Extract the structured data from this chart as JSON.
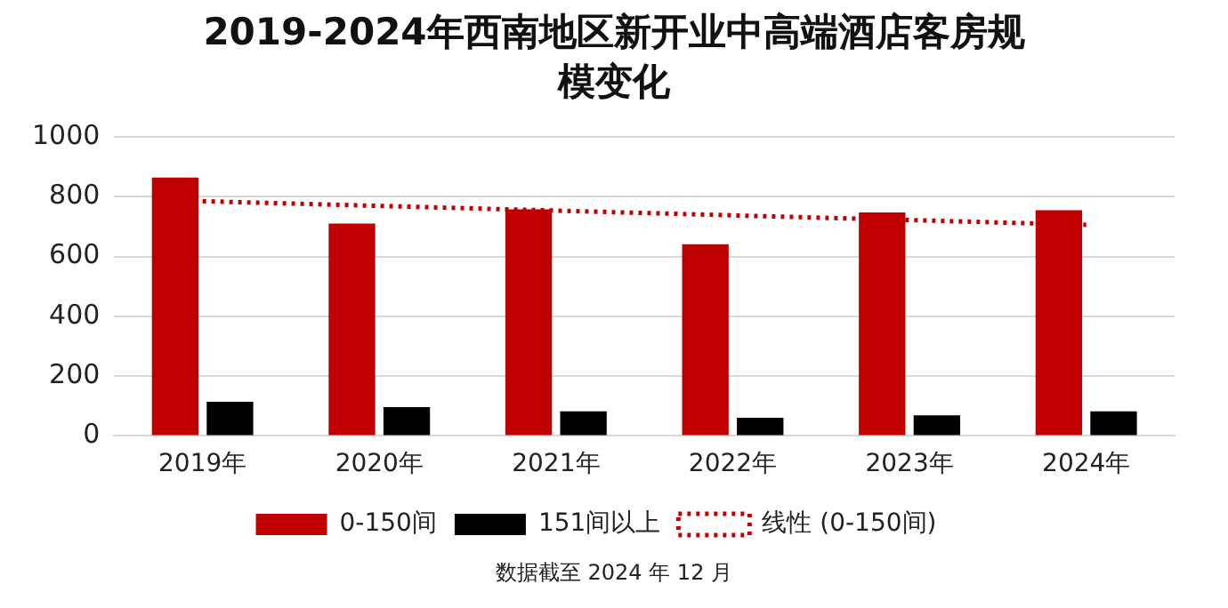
{
  "chart_data": {
    "type": "bar",
    "title": "2019-2024年西南地区新开业中高端酒店客房规模变化",
    "categories": [
      "2019年",
      "2020年",
      "2021年",
      "2022年",
      "2023年",
      "2024年"
    ],
    "series": [
      {
        "name": "0-150间",
        "color": "#c00000",
        "values": [
          864,
          710,
          758,
          641,
          747,
          755
        ]
      },
      {
        "name": "151间以上",
        "color": "#000000",
        "values": [
          114,
          96,
          82,
          61,
          69,
          82
        ]
      },
      {
        "name": "线性 (0-150间)",
        "type": "line",
        "color": "#c00000",
        "line_style": "dotted",
        "x": [
          "2019年",
          "2024年"
        ],
        "values": [
          785,
          706
        ]
      }
    ],
    "ylim": [
      0,
      1000
    ],
    "yticks": [
      0,
      200,
      400,
      600,
      800,
      1000
    ],
    "grid": "y",
    "legend": "bottom",
    "marker": "none",
    "annotations": [
      "数据截至 2024 年 12 月"
    ]
  }
}
